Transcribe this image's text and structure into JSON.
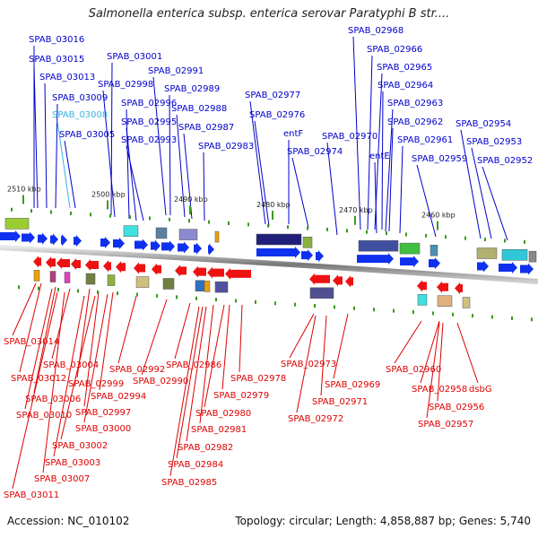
{
  "title": "Salmonella enterica subsp. enterica serovar Paratyphi B str....",
  "footer": {
    "accession": "Accession: NC_010102",
    "topology": "Topology: circular; Length: 4,858,887 bp; Genes: 5,740"
  },
  "colors": {
    "top_label": "#0000cc",
    "highlight_label": "#33b5e5",
    "bottom_label": "#dd0000",
    "forward_gene": "#1030f0",
    "reverse_gene": "#ee1111",
    "axis": "#888888",
    "tick": "#3a9a1a"
  },
  "scale_labels": [
    "2510 kbp",
    "2500 kbp",
    "2490 kbp",
    "2480 kbp",
    "2470 kbp",
    "2460 kbp"
  ],
  "top_labels": [
    {
      "text": "SPAB_03016"
    },
    {
      "text": "SPAB_03015"
    },
    {
      "text": "SPAB_03013"
    },
    {
      "text": "SPAB_03009"
    },
    {
      "text": "SPAB_03008",
      "highlight": true
    },
    {
      "text": "SPAB_03005"
    },
    {
      "text": "SPAB_03001"
    },
    {
      "text": "SPAB_02998"
    },
    {
      "text": "SPAB_02996"
    },
    {
      "text": "SPAB_02995"
    },
    {
      "text": "SPAB_02993"
    },
    {
      "text": "SPAB_02991"
    },
    {
      "text": "SPAB_02989"
    },
    {
      "text": "SPAB_02988"
    },
    {
      "text": "SPAB_02987"
    },
    {
      "text": "SPAB_02983"
    },
    {
      "text": "SPAB_02977"
    },
    {
      "text": "SPAB_02976"
    },
    {
      "text": "entF"
    },
    {
      "text": "SPAB_02974"
    },
    {
      "text": "SPAB_02968"
    },
    {
      "text": "SPAB_02966"
    },
    {
      "text": "SPAB_02965"
    },
    {
      "text": "SPAB_02964"
    },
    {
      "text": "SPAB_02963"
    },
    {
      "text": "SPAB_02962"
    },
    {
      "text": "SPAB_02970"
    },
    {
      "text": "entE"
    },
    {
      "text": "SPAB_02961"
    },
    {
      "text": "SPAB_02959"
    },
    {
      "text": "SPAB_02954"
    },
    {
      "text": "SPAB_02953"
    },
    {
      "text": "SPAB_02952"
    }
  ],
  "bottom_labels": [
    {
      "text": "SPAB_03014"
    },
    {
      "text": "SPAB_03012"
    },
    {
      "text": "SPAB_03004"
    },
    {
      "text": "SPAB_02999"
    },
    {
      "text": "SPAB_03006"
    },
    {
      "text": "SPAB_03010"
    },
    {
      "text": "SPAB_02997"
    },
    {
      "text": "SPAB_02994"
    },
    {
      "text": "SPAB_03000"
    },
    {
      "text": "SPAB_03002"
    },
    {
      "text": "SPAB_03003"
    },
    {
      "text": "SPAB_03007"
    },
    {
      "text": "SPAB_03011"
    },
    {
      "text": "SPAB_02992"
    },
    {
      "text": "SPAB_02990"
    },
    {
      "text": "SPAB_02986"
    },
    {
      "text": "SPAB_02978"
    },
    {
      "text": "SPAB_02979"
    },
    {
      "text": "SPAB_02980"
    },
    {
      "text": "SPAB_02981"
    },
    {
      "text": "SPAB_02982"
    },
    {
      "text": "SPAB_02984"
    },
    {
      "text": "SPAB_02985"
    },
    {
      "text": "SPAB_02973"
    },
    {
      "text": "SPAB_02969"
    },
    {
      "text": "SPAB_02971"
    },
    {
      "text": "SPAB_02972"
    },
    {
      "text": "SPAB_02960"
    },
    {
      "text": "SPAB_02958"
    },
    {
      "text": "dsbG"
    },
    {
      "text": "SPAB_02956"
    },
    {
      "text": "SPAB_02957"
    }
  ]
}
